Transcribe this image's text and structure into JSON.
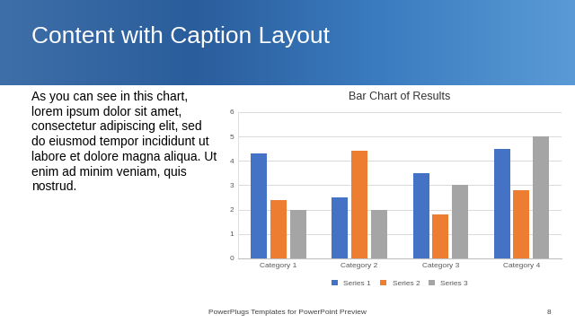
{
  "chart_data": {
    "type": "bar",
    "title": "Bar Chart of Results",
    "categories": [
      "Category 1",
      "Category 2",
      "Category 3",
      "Category 4"
    ],
    "series": [
      {
        "name": "Series 1",
        "color": "#4472c4",
        "values": [
          4.3,
          2.5,
          3.5,
          4.5
        ]
      },
      {
        "name": "Series 2",
        "color": "#ed7d31",
        "values": [
          2.4,
          4.4,
          1.8,
          2.8
        ]
      },
      {
        "name": "Series 3",
        "color": "#a5a5a5",
        "values": [
          2.0,
          2.0,
          3.0,
          5.0
        ]
      }
    ],
    "ylim": [
      0,
      6
    ],
    "yticks": [
      0,
      1,
      2,
      3,
      4,
      5,
      6
    ],
    "grid": true,
    "legend": "bottom"
  },
  "slide": {
    "title": "Content with Caption Layout",
    "caption_lines": [
      "As you can see in this chart,",
      "lorem ipsum dolor sit amet,",
      "consectetur adipiscing elit, sed",
      "do eiusmod tempor incididunt ut",
      "labore et dolore magna aliqua. Ut",
      "enim ad minim veniam, quis",
      "nostrud."
    ],
    "footer": "PowerPlugs Templates for PowerPoint Preview",
    "page_number": "8"
  }
}
